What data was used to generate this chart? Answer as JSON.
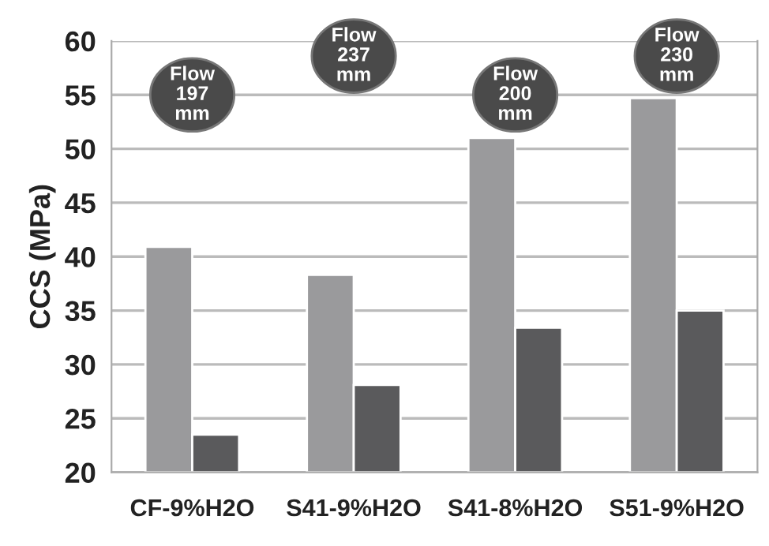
{
  "chart_data": {
    "type": "bar",
    "ylabel": "CCS (MPa)",
    "categories": [
      "CF-9%H2O",
      "S41-9%H2O",
      "S41-8%H2O",
      "S51-9%H2O"
    ],
    "series": [
      {
        "color": "#9a9a9c",
        "values": [
          40.9,
          38.3,
          51.0,
          54.7
        ]
      },
      {
        "color": "#5a5a5c",
        "values": [
          23.5,
          28.1,
          33.4,
          35.0
        ]
      }
    ],
    "ylim": [
      20,
      60
    ],
    "yticks": [
      20,
      25,
      30,
      35,
      40,
      45,
      50,
      55,
      60
    ],
    "grid": "y",
    "legend": false,
    "annotations": [
      "Flow\n197\nmm",
      "Flow\n237\nmm",
      "Flow\n200\nmm",
      "Flow\n230\nmm"
    ]
  }
}
